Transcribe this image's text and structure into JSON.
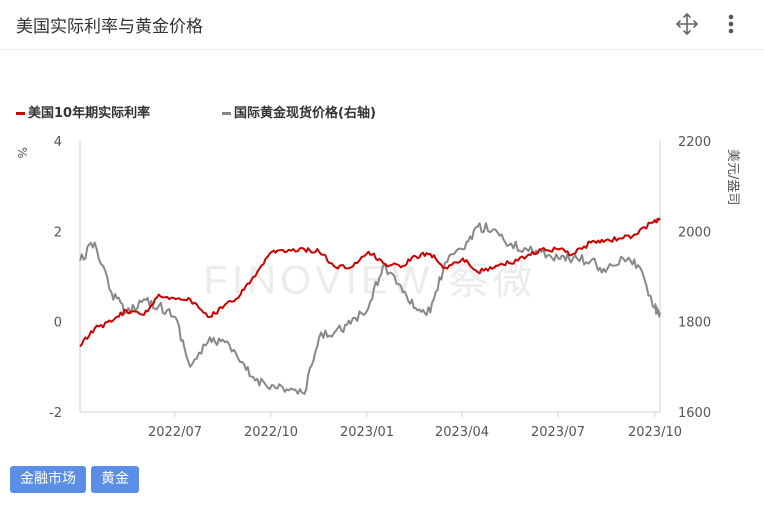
{
  "header": {
    "title": "美国实际利率与黄金价格"
  },
  "icons": {
    "move": "move-arrows-icon",
    "more": "more-vertical-icon"
  },
  "tags": [
    "金融市场",
    "黄金"
  ],
  "colors": {
    "real_rate": "#cc0000",
    "gold": "#888888",
    "axis": "#c8cfe0",
    "grid": "#eef0f5",
    "tag": "#5b8ee6"
  },
  "chart_data": {
    "type": "line",
    "watermark": "FINOVIEW 察微",
    "x_ticks": [
      "2022/07",
      "2022/10",
      "2023/01",
      "2023/04",
      "2023/07",
      "2023/10"
    ],
    "x_range": [
      "2022-04-01",
      "2023-10-06"
    ],
    "y_left": {
      "ticks": [
        "4",
        "2",
        "0",
        "-2"
      ],
      "ylim": [
        -2,
        4
      ],
      "label": "%"
    },
    "y_right": {
      "ticks": [
        "2200",
        "2000",
        "1800",
        "1600"
      ],
      "ylim": [
        1600,
        2200
      ],
      "label": "美元/盎司"
    },
    "grid": false,
    "legend_position": "top-left",
    "series": [
      {
        "name": "美国10年期实际利率",
        "axis": "left",
        "color": "#cc0000",
        "x": [
          "2022-04-01",
          "2022-04-15",
          "2022-05-01",
          "2022-05-15",
          "2022-06-01",
          "2022-06-15",
          "2022-07-01",
          "2022-07-15",
          "2022-08-01",
          "2022-08-15",
          "2022-09-01",
          "2022-09-15",
          "2022-10-01",
          "2022-10-15",
          "2022-11-01",
          "2022-11-15",
          "2022-12-01",
          "2022-12-15",
          "2023-01-01",
          "2023-01-15",
          "2023-02-01",
          "2023-02-15",
          "2023-03-01",
          "2023-03-15",
          "2023-04-01",
          "2023-04-15",
          "2023-05-01",
          "2023-05-15",
          "2023-06-01",
          "2023-06-15",
          "2023-07-01",
          "2023-07-15",
          "2023-08-01",
          "2023-08-15",
          "2023-09-01",
          "2023-09-15",
          "2023-10-01",
          "2023-10-06"
        ],
        "values": [
          -0.55,
          -0.15,
          0.0,
          0.25,
          0.15,
          0.6,
          0.5,
          0.5,
          0.1,
          0.3,
          0.6,
          1.0,
          1.55,
          1.55,
          1.6,
          1.55,
          1.2,
          1.2,
          1.55,
          1.3,
          1.2,
          1.45,
          1.5,
          1.2,
          1.4,
          1.1,
          1.2,
          1.3,
          1.45,
          1.6,
          1.6,
          1.5,
          1.75,
          1.8,
          1.85,
          1.95,
          2.25,
          2.25
        ]
      },
      {
        "name": "国际黄金现货价格(右轴)",
        "axis": "right",
        "color": "#888888",
        "x": [
          "2022-04-01",
          "2022-04-15",
          "2022-05-01",
          "2022-05-15",
          "2022-06-01",
          "2022-06-15",
          "2022-07-01",
          "2022-07-15",
          "2022-08-01",
          "2022-08-15",
          "2022-09-01",
          "2022-09-15",
          "2022-10-01",
          "2022-10-15",
          "2022-11-01",
          "2022-11-15",
          "2022-12-01",
          "2022-12-15",
          "2023-01-01",
          "2023-01-15",
          "2023-02-01",
          "2023-02-15",
          "2023-03-01",
          "2023-03-15",
          "2023-04-01",
          "2023-04-15",
          "2023-05-01",
          "2023-05-15",
          "2023-06-01",
          "2023-06-15",
          "2023-07-01",
          "2023-07-15",
          "2023-08-01",
          "2023-08-15",
          "2023-09-01",
          "2023-09-15",
          "2023-10-01",
          "2023-10-06"
        ],
        "values": [
          1935,
          1975,
          1865,
          1820,
          1850,
          1835,
          1810,
          1700,
          1755,
          1760,
          1710,
          1670,
          1660,
          1650,
          1640,
          1765,
          1780,
          1795,
          1830,
          1925,
          1880,
          1830,
          1820,
          1930,
          1960,
          2010,
          2005,
          1970,
          1960,
          1955,
          1940,
          1940,
          1935,
          1910,
          1940,
          1925,
          1830,
          1820
        ]
      }
    ]
  }
}
